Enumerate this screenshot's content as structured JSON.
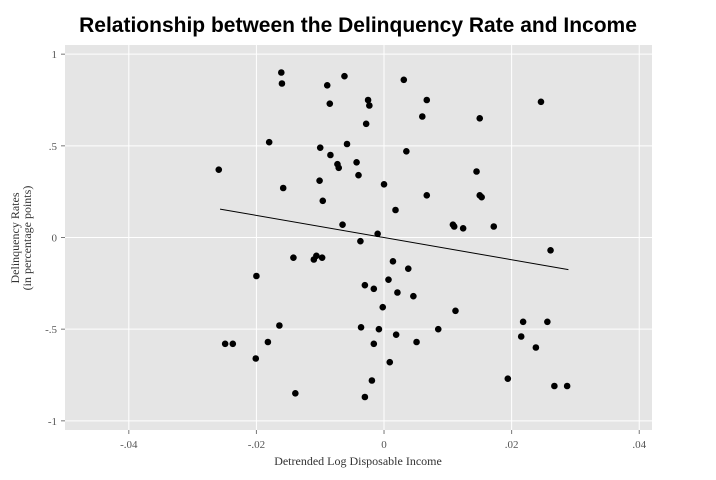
{
  "chart_data": {
    "type": "scatter",
    "title": "Relationship between the Delinquency Rate and Income",
    "xlabel": "Detrended Log Disposable Income",
    "ylabel_line1": "Delinquency Rates",
    "ylabel_line2": "(in percentage points)",
    "xlim": [
      -0.05,
      0.042
    ],
    "ylim": [
      -1.05,
      1.05
    ],
    "x_tick_values": [
      -0.04,
      -0.02,
      0,
      0.02,
      0.04
    ],
    "x_tick_labels": [
      "-.04",
      "-.02",
      "0",
      ".02",
      ".04"
    ],
    "y_tick_values": [
      -1,
      -0.5,
      0,
      0.5,
      1
    ],
    "y_tick_labels": [
      "-1",
      "-.5",
      "0",
      ".5",
      "1"
    ],
    "grid": true,
    "background": "#e5e5e5",
    "point_color": "#000000",
    "fit_line": {
      "x": [
        -0.0257,
        0.0289
      ],
      "y": [
        0.155,
        -0.175
      ]
    },
    "points": [
      {
        "x": -0.0259,
        "y": 0.37
      },
      {
        "x": -0.0249,
        "y": -0.58
      },
      {
        "x": -0.0237,
        "y": -0.58
      },
      {
        "x": -0.0201,
        "y": -0.66
      },
      {
        "x": -0.02,
        "y": -0.21
      },
      {
        "x": -0.0182,
        "y": -0.57
      },
      {
        "x": -0.018,
        "y": 0.52
      },
      {
        "x": -0.0164,
        "y": -0.48
      },
      {
        "x": -0.0161,
        "y": 0.9
      },
      {
        "x": -0.016,
        "y": 0.84
      },
      {
        "x": -0.0158,
        "y": 0.27
      },
      {
        "x": -0.0142,
        "y": -0.11
      },
      {
        "x": -0.0139,
        "y": -0.85
      },
      {
        "x": -0.011,
        "y": -0.12
      },
      {
        "x": -0.0106,
        "y": -0.1
      },
      {
        "x": -0.0101,
        "y": 0.31
      },
      {
        "x": -0.01,
        "y": 0.49
      },
      {
        "x": -0.0097,
        "y": -0.11
      },
      {
        "x": -0.0096,
        "y": 0.2
      },
      {
        "x": -0.0089,
        "y": 0.83
      },
      {
        "x": -0.0085,
        "y": 0.73
      },
      {
        "x": -0.0084,
        "y": 0.45
      },
      {
        "x": -0.0073,
        "y": 0.4
      },
      {
        "x": -0.0071,
        "y": 0.38
      },
      {
        "x": -0.0065,
        "y": 0.07
      },
      {
        "x": -0.0062,
        "y": 0.88
      },
      {
        "x": -0.0058,
        "y": 0.51
      },
      {
        "x": -0.0043,
        "y": 0.41
      },
      {
        "x": -0.004,
        "y": 0.34
      },
      {
        "x": -0.0037,
        "y": -0.02
      },
      {
        "x": -0.0036,
        "y": -0.49
      },
      {
        "x": -0.003,
        "y": -0.26
      },
      {
        "x": -0.003,
        "y": -0.87
      },
      {
        "x": -0.0028,
        "y": 0.62
      },
      {
        "x": -0.0025,
        "y": 0.75
      },
      {
        "x": -0.0023,
        "y": 0.72
      },
      {
        "x": -0.0019,
        "y": -0.78
      },
      {
        "x": -0.0016,
        "y": -0.28
      },
      {
        "x": -0.0016,
        "y": -0.58
      },
      {
        "x": -0.001,
        "y": 0.02
      },
      {
        "x": -0.0008,
        "y": -0.5
      },
      {
        "x": 0.0,
        "y": 0.29
      },
      {
        "x": -0.0002,
        "y": -0.38
      },
      {
        "x": 0.0007,
        "y": -0.23
      },
      {
        "x": 0.0009,
        "y": -0.68
      },
      {
        "x": 0.0014,
        "y": -0.13
      },
      {
        "x": 0.0018,
        "y": 0.15
      },
      {
        "x": 0.0019,
        "y": -0.53
      },
      {
        "x": 0.0021,
        "y": -0.3
      },
      {
        "x": 0.0031,
        "y": 0.86
      },
      {
        "x": 0.0035,
        "y": 0.47
      },
      {
        "x": 0.0038,
        "y": -0.17
      },
      {
        "x": 0.0046,
        "y": -0.32
      },
      {
        "x": 0.0051,
        "y": -0.57
      },
      {
        "x": 0.006,
        "y": 0.66
      },
      {
        "x": 0.0067,
        "y": 0.75
      },
      {
        "x": 0.0067,
        "y": 0.23
      },
      {
        "x": 0.0085,
        "y": -0.5
      },
      {
        "x": 0.0108,
        "y": 0.07
      },
      {
        "x": 0.011,
        "y": 0.06
      },
      {
        "x": 0.0112,
        "y": -0.4
      },
      {
        "x": 0.0124,
        "y": 0.05
      },
      {
        "x": 0.0145,
        "y": 0.36
      },
      {
        "x": 0.015,
        "y": 0.65
      },
      {
        "x": 0.015,
        "y": 0.23
      },
      {
        "x": 0.0153,
        "y": 0.22
      },
      {
        "x": 0.0172,
        "y": 0.06
      },
      {
        "x": 0.0194,
        "y": -0.77
      },
      {
        "x": 0.0215,
        "y": -0.54
      },
      {
        "x": 0.0218,
        "y": -0.46
      },
      {
        "x": 0.0238,
        "y": -0.6
      },
      {
        "x": 0.0246,
        "y": 0.74
      },
      {
        "x": 0.0256,
        "y": -0.46
      },
      {
        "x": 0.0261,
        "y": -0.07
      },
      {
        "x": 0.0267,
        "y": -0.81
      },
      {
        "x": 0.0287,
        "y": -0.81
      }
    ]
  }
}
